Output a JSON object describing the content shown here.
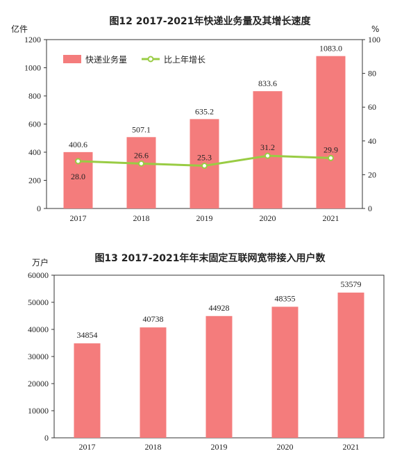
{
  "chart_data": [
    {
      "type": "bar",
      "title": "图12   2017-2021年快递业务量及其增长速度",
      "ylabel_left": "亿件",
      "ylabel_right": "%",
      "categories": [
        "2017",
        "2018",
        "2019",
        "2020",
        "2021"
      ],
      "series": [
        {
          "name": "快递业务量",
          "type": "bar",
          "axis": "left",
          "color": "#f47c7c",
          "values": [
            400.6,
            507.1,
            635.2,
            833.6,
            1083.0
          ],
          "labels": [
            "400.6",
            "507.1",
            "635.2",
            "833.6",
            "1083.0"
          ]
        },
        {
          "name": "比上年增长",
          "type": "line",
          "axis": "right",
          "color": "#99cc44",
          "values": [
            28.0,
            26.6,
            25.3,
            31.2,
            29.9
          ],
          "labels": [
            "28.0",
            "26.6",
            "25.3",
            "31.2",
            "29.9"
          ]
        }
      ],
      "ylim_left": [
        0,
        1200
      ],
      "yticks_left": [
        "0",
        "200",
        "400",
        "600",
        "800",
        "1000",
        "1200"
      ],
      "ylim_right": [
        0,
        100
      ],
      "yticks_right": [
        "0",
        "20",
        "40",
        "60",
        "80",
        "100"
      ],
      "legend_position": "top-left",
      "grid": false
    },
    {
      "type": "bar",
      "title": "图13   2017-2021年年末固定互联网宽带接入用户数",
      "ylabel": "万户",
      "categories": [
        "2017",
        "2018",
        "2019",
        "2020",
        "2021"
      ],
      "series": [
        {
          "color": "#f47c7c",
          "values": [
            34854,
            40738,
            44928,
            48355,
            53579
          ],
          "labels": [
            "34854",
            "40738",
            "44928",
            "48355",
            "53579"
          ]
        }
      ],
      "ylim": [
        0,
        60000
      ],
      "yticks": [
        "0",
        "10000",
        "20000",
        "30000",
        "40000",
        "50000",
        "60000"
      ],
      "grid": false
    }
  ]
}
